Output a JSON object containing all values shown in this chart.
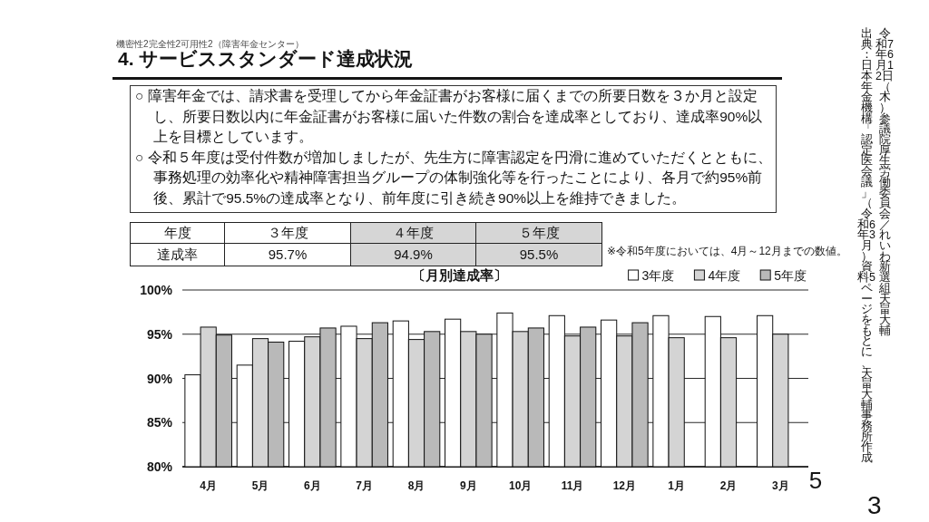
{
  "chart_data": [
    {
      "type": "other",
      "title": "4. サービススタンダード達成状況",
      "annotations": [
        "機密性2完全性2可用性2（障害年金センター）",
        "○ 障害年金では、請求書を受理してから年金証書がお客様に届くまでの所要日数を３か月と設定し、所要日数以内に年金証書がお客様に届いた件数の割合を達成率としており、達成率90%以上を目標としています。",
        "○ 令和５年度は受付件数が増加しましたが、先生方に障害認定を円滑に進めていただくとともに、事務処理の効率化や精神障害担当グループの体制強化等を行ったことにより、各月で約95%前後、累計で95.5%の達成率となり、前年度に引き続き90%以上を維持できました。"
      ]
    },
    {
      "type": "other",
      "xlabel": "年度",
      "ylabel": "達成率",
      "categories": [
        "３年度",
        "４年度",
        "５年度"
      ],
      "value_labels": [
        "95.7%",
        "94.9%",
        "95.5%"
      ],
      "colors": [
        "#ffffff",
        "#d6d6d6",
        "#d6d6d6"
      ],
      "annotations": [
        "※令和5年度においては、4月～12月までの数値。"
      ]
    },
    {
      "type": "bar",
      "title": "〔月別達成率〕",
      "categories": [
        "4月",
        "5月",
        "6月",
        "7月",
        "8月",
        "9月",
        "10月",
        "11月",
        "12月",
        "1月",
        "2月",
        "3月"
      ],
      "series": [
        {
          "name": "3年度",
          "color": "#ffffff",
          "values": [
            90.4,
            91.5,
            94.2,
            95.9,
            96.5,
            96.7,
            97.4,
            97.1,
            96.6,
            97.1,
            97.0,
            97.1
          ]
        },
        {
          "name": "4年度",
          "color": "#d4d4d4",
          "values": [
            95.8,
            94.5,
            94.7,
            94.5,
            94.4,
            95.3,
            95.3,
            94.8,
            94.8,
            94.6,
            94.6,
            95.0
          ]
        },
        {
          "name": "5年度",
          "color": "#b9b9b9",
          "values": [
            94.9,
            94.1,
            95.7,
            96.3,
            95.3,
            95.0,
            95.7,
            95.8,
            96.3,
            null,
            null,
            null
          ]
        }
      ],
      "ylim": [
        80,
        100
      ],
      "yticks": [
        {
          "value": 80,
          "label": "80%"
        },
        {
          "value": 85,
          "label": "85%"
        },
        {
          "value": 90,
          "label": "90%"
        },
        {
          "value": 95,
          "label": "95%"
        },
        {
          "value": 100,
          "label": "100%"
        }
      ],
      "grid": "y",
      "legend": "top right",
      "annotations": [
        "5"
      ]
    },
    {
      "type": "other",
      "annotations": [
        "令和7年6月12日（木）参議院厚生労働委員会／れいわ新選組天畠大輔",
        "出典：日本年金機構「認定医会議」（令和6年3月）資料5ページをもとに、天畠大輔事務所作成",
        "3"
      ]
    }
  ]
}
